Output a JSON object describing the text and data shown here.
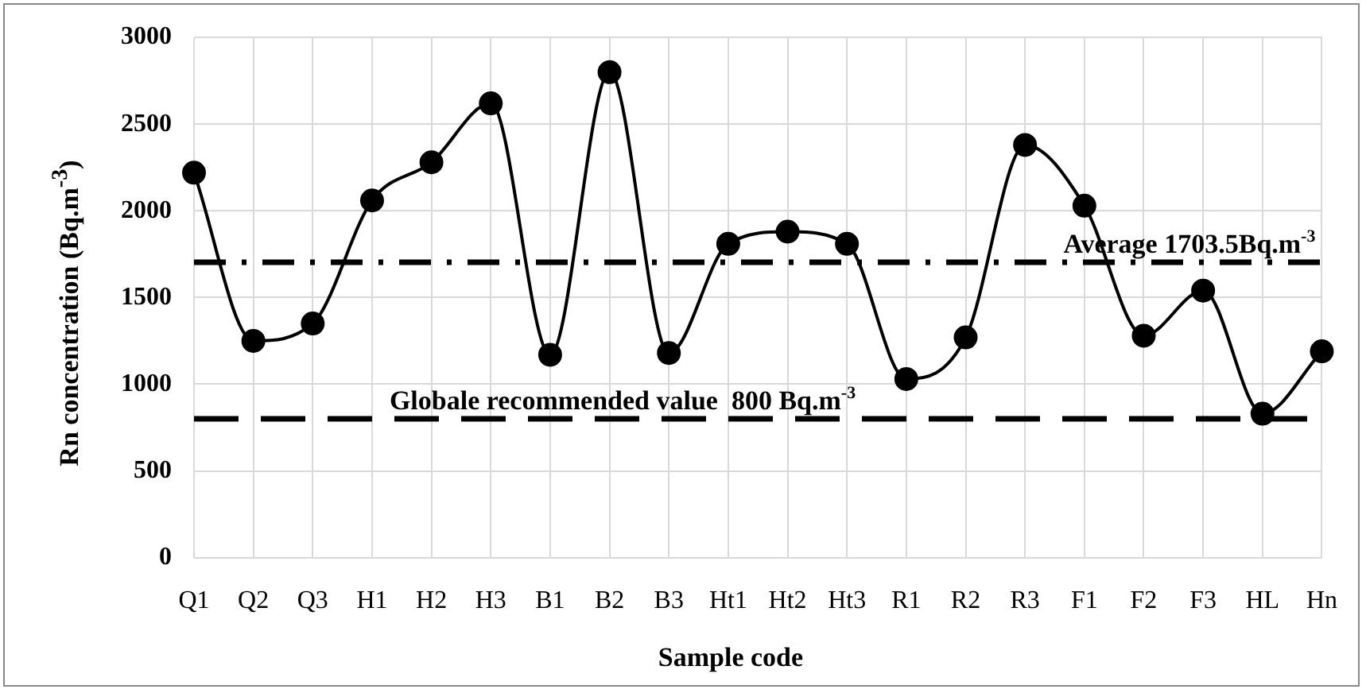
{
  "chart_data": {
    "type": "line",
    "xlabel": "Sample code",
    "ylabel": "Rn concentration (Bq.m$^{-3}$)",
    "categories": [
      "Q1",
      "Q2",
      "Q3",
      "H1",
      "H2",
      "H3",
      "B1",
      "B2",
      "B3",
      "Ht1",
      "Ht2",
      "Ht3",
      "R1",
      "R2",
      "R3",
      "F1",
      "F2",
      "F3",
      "HL",
      "Hn"
    ],
    "values": [
      2220,
      1250,
      1350,
      2060,
      2280,
      2620,
      1170,
      2800,
      1180,
      1810,
      1880,
      1810,
      1030,
      1270,
      2380,
      2030,
      1280,
      1540,
      830,
      1190
    ],
    "color": "#000000",
    "marker": "circle",
    "line_style": "solid",
    "ylim": [
      0,
      3000
    ],
    "yticks": [
      0,
      500,
      1000,
      1500,
      2000,
      2500,
      3000
    ],
    "grid": true,
    "legend": false,
    "ref_lines": [
      {
        "axis": "y",
        "value": 1703.5,
        "label": "Average 1703.5Bq.m$^{-3}$",
        "line_style": "dashdot",
        "color": "#000000"
      },
      {
        "axis": "y",
        "value": 800,
        "label": "Globale recommended value  800 Bq.m$^{-3}$",
        "line_style": "dashed",
        "color": "#000000"
      }
    ]
  }
}
